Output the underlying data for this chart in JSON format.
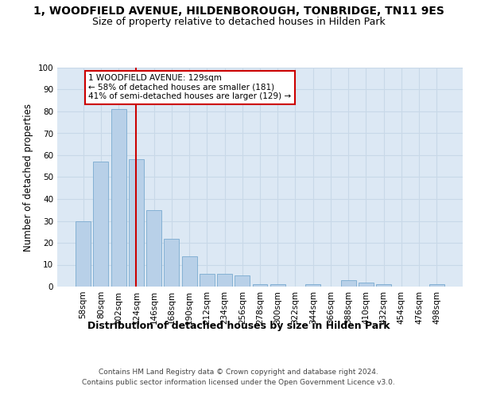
{
  "title": "1, WOODFIELD AVENUE, HILDENBOROUGH, TONBRIDGE, TN11 9ES",
  "subtitle": "Size of property relative to detached houses in Hilden Park",
  "xlabel": "Distribution of detached houses by size in Hilden Park",
  "ylabel": "Number of detached properties",
  "categories": [
    "58sqm",
    "80sqm",
    "102sqm",
    "124sqm",
    "146sqm",
    "168sqm",
    "190sqm",
    "212sqm",
    "234sqm",
    "256sqm",
    "278sqm",
    "300sqm",
    "322sqm",
    "344sqm",
    "366sqm",
    "388sqm",
    "410sqm",
    "432sqm",
    "454sqm",
    "476sqm",
    "498sqm"
  ],
  "values": [
    30,
    57,
    81,
    58,
    35,
    22,
    14,
    6,
    6,
    5,
    1,
    1,
    0,
    1,
    0,
    3,
    2,
    1,
    0,
    0,
    1
  ],
  "bar_color": "#b8d0e8",
  "bar_edge_color": "#7aaad0",
  "reference_line_x": 3,
  "reference_line_color": "#cc0000",
  "annotation_text": "1 WOODFIELD AVENUE: 129sqm\n← 58% of detached houses are smaller (181)\n41% of semi-detached houses are larger (129) →",
  "annotation_box_color": "#cc0000",
  "ylim": [
    0,
    100
  ],
  "yticks": [
    0,
    10,
    20,
    30,
    40,
    50,
    60,
    70,
    80,
    90,
    100
  ],
  "grid_color": "#c8d8e8",
  "background_color": "#dce8f4",
  "footer_line1": "Contains HM Land Registry data © Crown copyright and database right 2024.",
  "footer_line2": "Contains public sector information licensed under the Open Government Licence v3.0.",
  "title_fontsize": 10,
  "subtitle_fontsize": 9,
  "tick_fontsize": 7.5,
  "ylabel_fontsize": 8.5,
  "xlabel_fontsize": 9,
  "footer_fontsize": 6.5
}
